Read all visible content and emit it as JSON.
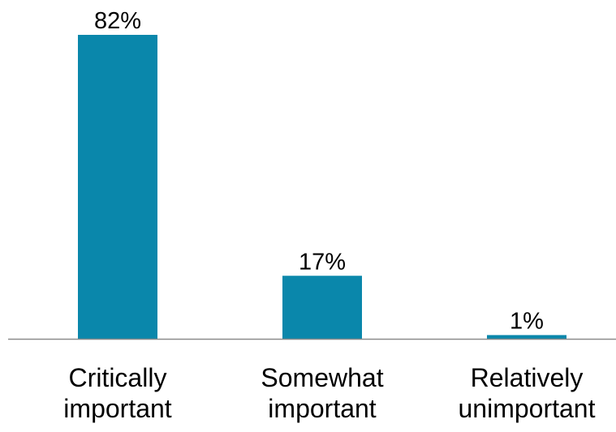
{
  "chart_data": {
    "type": "bar",
    "categories": [
      [
        "Critically",
        "important"
      ],
      [
        "Somewhat",
        "important"
      ],
      [
        "Relatively",
        "unimportant"
      ]
    ],
    "values": [
      82,
      17,
      1
    ],
    "value_labels": [
      "82%",
      "17%",
      "1%"
    ],
    "unit": "%",
    "ylim": [
      0,
      82
    ],
    "grid": false,
    "legend": "none",
    "colors": {
      "bar": "#0a87ab",
      "axis": "#8c8c8c"
    }
  }
}
